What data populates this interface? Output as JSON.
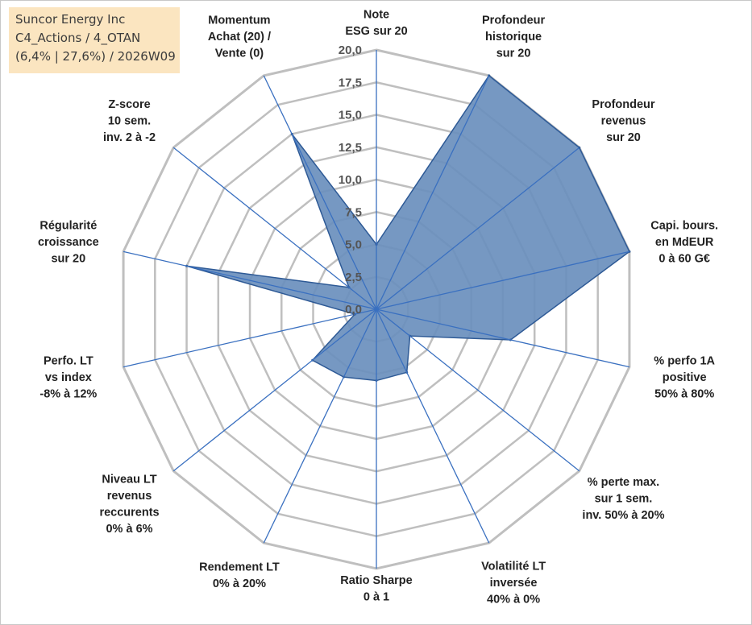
{
  "info": {
    "company": "Suncor Energy Inc",
    "category": "C4_Actions / 4_OTAN",
    "stats": "(6,4% | 27,6%) / 2026W09"
  },
  "chart_data": {
    "type": "radar",
    "title": "",
    "rmin": 0,
    "rmax": 20,
    "tick_labels": [
      "0,0",
      "2,5",
      "5,0",
      "7,5",
      "10,0",
      "12,5",
      "15,0",
      "17,5",
      "20,0"
    ],
    "axes": [
      {
        "lines": [
          "Note",
          "ESG sur 20"
        ]
      },
      {
        "lines": [
          "Profondeur",
          "historique",
          "sur 20"
        ]
      },
      {
        "lines": [
          "Profondeur",
          "revenus",
          "sur 20"
        ]
      },
      {
        "lines": [
          "Capi. bours.",
          "en MdEUR",
          "0 à 60 G€"
        ]
      },
      {
        "lines": [
          "% perfo 1A",
          "positive",
          "50% à 80%"
        ]
      },
      {
        "lines": [
          "% perte max.",
          "sur 1 sem.",
          "inv. 50% à 20%"
        ]
      },
      {
        "lines": [
          "Volatilité LT",
          "inversée",
          "40% à 0%"
        ]
      },
      {
        "lines": [
          "Ratio Sharpe",
          "0 à 1"
        ]
      },
      {
        "lines": [
          "Rendement LT",
          "0% à 20%"
        ]
      },
      {
        "lines": [
          "Niveau LT",
          "revenus",
          "reccurents",
          "0% à 6%"
        ]
      },
      {
        "lines": [
          "Perfo. LT",
          "vs index",
          "-8% à 12%"
        ]
      },
      {
        "lines": [
          "Régularité",
          "croissance",
          "sur 20"
        ]
      },
      {
        "lines": [
          "Z-score",
          "10 sem.",
          "inv. 2 à -2"
        ]
      },
      {
        "lines": [
          "Momentum",
          "Achat (20) /",
          "Vente (0)"
        ]
      }
    ],
    "series": [
      {
        "values": [
          5.0,
          20.0,
          20.0,
          20.0,
          10.6,
          3.3,
          5.4,
          5.5,
          5.8,
          6.3,
          1.7,
          15.0,
          2.7,
          15.0
        ],
        "color": "#6a8fbd",
        "edge_color": "#2e5a96"
      }
    ],
    "grid": true,
    "gridline_color": "#bfbfbf",
    "axis_line_color": "#3a70c0"
  }
}
